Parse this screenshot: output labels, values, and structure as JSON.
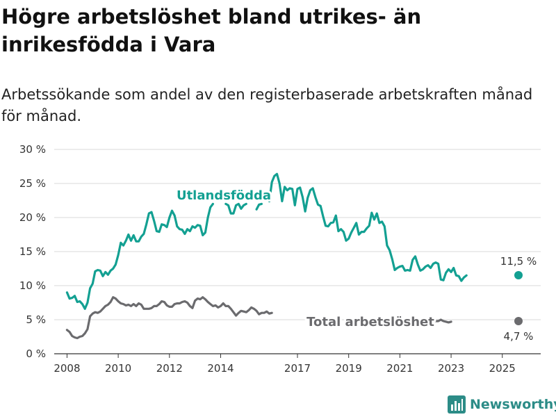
{
  "title": "Högre arbetslöshet bland utrikes- än inrikesfödda i Vara",
  "subtitle": "Arbetssökande som andel av den registerbaserade arbetskraften månad för månad.",
  "brand": {
    "name": "Newsworthy",
    "color": "#2c8c87",
    "icon": "bar-chart-logo-icon"
  },
  "chart_data": {
    "type": "line",
    "x_unit": "year",
    "xlim": [
      2007.5,
      2026.5
    ],
    "ylim": [
      0,
      30
    ],
    "y_ticks": [
      0,
      5,
      10,
      15,
      20,
      25,
      30
    ],
    "y_tick_labels": [
      "0 %",
      "5 %",
      "10 %",
      "15 %",
      "20 %",
      "25 %",
      "30 %"
    ],
    "x_ticks": [
      2008,
      2010,
      2012,
      2014,
      2017,
      2019,
      2021,
      2023,
      2025
    ],
    "x_tick_labels": [
      "2008",
      "2010",
      "2012",
      "2014",
      "2017",
      "2019",
      "2021",
      "2023",
      "2025"
    ],
    "grid": "horizontal",
    "series": [
      {
        "name": "Utlandsfödda",
        "color": "#13a092",
        "end_label": "11,5 %",
        "points": [
          [
            2008.0,
            9.0
          ],
          [
            2008.1,
            8.1
          ],
          [
            2008.2,
            8.2
          ],
          [
            2008.3,
            8.5
          ],
          [
            2008.4,
            7.6
          ],
          [
            2008.5,
            7.7
          ],
          [
            2008.6,
            7.3
          ],
          [
            2008.7,
            6.6
          ],
          [
            2008.8,
            7.5
          ],
          [
            2008.9,
            9.6
          ],
          [
            2009.0,
            10.3
          ],
          [
            2009.1,
            12.1
          ],
          [
            2009.2,
            12.3
          ],
          [
            2009.3,
            12.2
          ],
          [
            2009.4,
            11.4
          ],
          [
            2009.5,
            12.0
          ],
          [
            2009.6,
            11.6
          ],
          [
            2009.7,
            12.2
          ],
          [
            2009.8,
            12.5
          ],
          [
            2009.9,
            13.1
          ],
          [
            2010.0,
            14.5
          ],
          [
            2010.1,
            16.3
          ],
          [
            2010.2,
            15.9
          ],
          [
            2010.3,
            16.6
          ],
          [
            2010.4,
            17.5
          ],
          [
            2010.5,
            16.6
          ],
          [
            2010.6,
            17.4
          ],
          [
            2010.7,
            16.5
          ],
          [
            2010.8,
            16.5
          ],
          [
            2010.9,
            17.2
          ],
          [
            2011.0,
            17.6
          ],
          [
            2011.1,
            19.0
          ],
          [
            2011.2,
            20.6
          ],
          [
            2011.3,
            20.8
          ],
          [
            2011.4,
            19.5
          ],
          [
            2011.5,
            18.0
          ],
          [
            2011.6,
            17.9
          ],
          [
            2011.7,
            19.0
          ],
          [
            2011.8,
            18.9
          ],
          [
            2011.9,
            18.6
          ],
          [
            2012.0,
            20.0
          ],
          [
            2012.1,
            21.0
          ],
          [
            2012.2,
            20.3
          ],
          [
            2012.3,
            18.7
          ],
          [
            2012.4,
            18.3
          ],
          [
            2012.5,
            18.2
          ],
          [
            2012.6,
            17.6
          ],
          [
            2012.7,
            18.3
          ],
          [
            2012.8,
            18.0
          ],
          [
            2012.9,
            18.7
          ],
          [
            2013.0,
            18.5
          ],
          [
            2013.1,
            18.9
          ],
          [
            2013.2,
            18.8
          ],
          [
            2013.3,
            17.4
          ],
          [
            2013.4,
            17.8
          ],
          [
            2013.5,
            20.0
          ],
          [
            2013.6,
            21.5
          ],
          [
            2013.7,
            22.0
          ],
          [
            null,
            null
          ],
          [
            2014.2,
            22.0
          ],
          [
            2014.3,
            21.8
          ],
          [
            2014.4,
            20.6
          ],
          [
            2014.5,
            20.6
          ],
          [
            2014.6,
            21.8
          ],
          [
            2014.7,
            22.0
          ],
          [
            2014.8,
            21.3
          ],
          [
            2014.9,
            21.8
          ],
          [
            2015.0,
            22.0
          ],
          [
            null,
            null
          ],
          [
            2015.4,
            21.2
          ],
          [
            2015.5,
            21.9
          ],
          [
            2015.6,
            22.0
          ],
          [
            null,
            null
          ],
          [
            2015.9,
            22.4
          ],
          [
            2016.0,
            25.2
          ],
          [
            2016.1,
            26.1
          ],
          [
            2016.2,
            26.4
          ],
          [
            2016.3,
            25.0
          ],
          [
            2016.4,
            22.4
          ],
          [
            2016.5,
            24.5
          ],
          [
            2016.6,
            24.0
          ],
          [
            2016.7,
            24.3
          ],
          [
            2016.8,
            24.2
          ],
          [
            2016.9,
            21.8
          ],
          [
            2017.0,
            24.2
          ],
          [
            2017.1,
            24.4
          ],
          [
            2017.2,
            23.0
          ],
          [
            2017.3,
            20.9
          ],
          [
            2017.4,
            22.9
          ],
          [
            2017.5,
            24.0
          ],
          [
            2017.6,
            24.3
          ],
          [
            2017.7,
            23.0
          ],
          [
            2017.8,
            21.9
          ],
          [
            2017.9,
            21.7
          ],
          [
            2018.0,
            20.2
          ],
          [
            2018.1,
            18.8
          ],
          [
            2018.2,
            18.7
          ],
          [
            2018.3,
            19.2
          ],
          [
            2018.4,
            19.3
          ],
          [
            2018.5,
            20.3
          ],
          [
            2018.6,
            18.0
          ],
          [
            2018.7,
            18.3
          ],
          [
            2018.8,
            17.9
          ],
          [
            2018.9,
            16.6
          ],
          [
            2019.0,
            16.9
          ],
          [
            2019.1,
            17.8
          ],
          [
            2019.2,
            18.5
          ],
          [
            2019.3,
            19.2
          ],
          [
            2019.4,
            17.5
          ],
          [
            2019.5,
            17.9
          ],
          [
            2019.6,
            17.9
          ],
          [
            2019.7,
            18.4
          ],
          [
            2019.8,
            18.8
          ],
          [
            2019.9,
            20.7
          ],
          [
            2020.0,
            19.7
          ],
          [
            2020.1,
            20.6
          ],
          [
            2020.2,
            19.2
          ],
          [
            2020.3,
            19.4
          ],
          [
            2020.4,
            18.7
          ],
          [
            2020.5,
            15.9
          ],
          [
            2020.6,
            15.2
          ],
          [
            2020.7,
            13.9
          ],
          [
            2020.8,
            12.3
          ],
          [
            2020.9,
            12.6
          ],
          [
            2021.0,
            12.8
          ],
          [
            2021.1,
            12.9
          ],
          [
            2021.2,
            12.2
          ],
          [
            2021.3,
            12.3
          ],
          [
            2021.4,
            12.2
          ],
          [
            2021.5,
            13.8
          ],
          [
            2021.6,
            14.3
          ],
          [
            2021.7,
            13.1
          ],
          [
            2021.8,
            12.2
          ],
          [
            2021.9,
            12.4
          ],
          [
            2022.0,
            12.8
          ],
          [
            2022.1,
            13.0
          ],
          [
            2022.2,
            12.6
          ],
          [
            2022.3,
            13.2
          ],
          [
            2022.4,
            13.4
          ],
          [
            2022.5,
            13.2
          ],
          [
            2022.6,
            10.9
          ],
          [
            2022.7,
            10.8
          ],
          [
            2022.8,
            11.9
          ],
          [
            2022.9,
            12.4
          ],
          [
            2023.0,
            12.0
          ],
          [
            2023.1,
            12.6
          ],
          [
            2023.2,
            11.5
          ],
          [
            2023.3,
            11.4
          ],
          [
            2023.4,
            10.7
          ],
          [
            2023.5,
            11.2
          ],
          [
            2023.6,
            11.5
          ]
        ]
      },
      {
        "name": "Total arbetslöshet",
        "color": "#6b6b6e",
        "end_label": "4,7 %",
        "points": [
          [
            2008.0,
            3.5
          ],
          [
            2008.1,
            3.2
          ],
          [
            2008.2,
            2.6
          ],
          [
            2008.3,
            2.4
          ],
          [
            2008.4,
            2.3
          ],
          [
            2008.5,
            2.5
          ],
          [
            2008.6,
            2.6
          ],
          [
            2008.7,
            3.0
          ],
          [
            2008.8,
            3.6
          ],
          [
            2008.9,
            5.5
          ],
          [
            2009.0,
            5.9
          ],
          [
            2009.1,
            6.1
          ],
          [
            2009.2,
            6.0
          ],
          [
            2009.3,
            6.2
          ],
          [
            2009.4,
            6.6
          ],
          [
            2009.5,
            7.0
          ],
          [
            2009.6,
            7.2
          ],
          [
            2009.7,
            7.6
          ],
          [
            2009.8,
            8.3
          ],
          [
            2009.9,
            8.1
          ],
          [
            2010.0,
            7.7
          ],
          [
            2010.1,
            7.4
          ],
          [
            2010.2,
            7.3
          ],
          [
            2010.3,
            7.1
          ],
          [
            2010.4,
            7.2
          ],
          [
            2010.5,
            7.0
          ],
          [
            2010.6,
            7.3
          ],
          [
            2010.7,
            7.0
          ],
          [
            2010.8,
            7.4
          ],
          [
            2010.9,
            7.2
          ],
          [
            2011.0,
            6.6
          ],
          [
            2011.1,
            6.6
          ],
          [
            2011.2,
            6.6
          ],
          [
            2011.3,
            6.7
          ],
          [
            2011.4,
            7.0
          ],
          [
            2011.5,
            7.0
          ],
          [
            2011.6,
            7.3
          ],
          [
            2011.7,
            7.7
          ],
          [
            2011.8,
            7.6
          ],
          [
            2011.9,
            7.1
          ],
          [
            2012.0,
            6.9
          ],
          [
            2012.1,
            6.9
          ],
          [
            2012.2,
            7.3
          ],
          [
            2012.3,
            7.4
          ],
          [
            2012.4,
            7.4
          ],
          [
            2012.5,
            7.6
          ],
          [
            2012.6,
            7.7
          ],
          [
            2012.7,
            7.5
          ],
          [
            2012.8,
            7.0
          ],
          [
            2012.9,
            6.7
          ],
          [
            2013.0,
            7.8
          ],
          [
            2013.1,
            8.1
          ],
          [
            2013.2,
            8.0
          ],
          [
            2013.3,
            8.3
          ],
          [
            2013.4,
            8.0
          ],
          [
            2013.5,
            7.6
          ],
          [
            2013.6,
            7.3
          ],
          [
            2013.7,
            7.0
          ],
          [
            2013.8,
            7.1
          ],
          [
            2013.9,
            6.8
          ],
          [
            2014.0,
            7.0
          ],
          [
            2014.1,
            7.4
          ],
          [
            2014.2,
            7.0
          ],
          [
            2014.3,
            7.0
          ],
          [
            2014.4,
            6.6
          ],
          [
            2014.5,
            6.1
          ],
          [
            2014.6,
            5.6
          ],
          [
            2014.7,
            6.0
          ],
          [
            2014.8,
            6.3
          ],
          [
            2014.9,
            6.2
          ],
          [
            2015.0,
            6.1
          ],
          [
            2015.1,
            6.4
          ],
          [
            2015.2,
            6.8
          ],
          [
            2015.3,
            6.6
          ],
          [
            2015.4,
            6.3
          ],
          [
            2015.5,
            5.8
          ],
          [
            2015.6,
            6.0
          ],
          [
            2015.7,
            6.0
          ],
          [
            2015.8,
            6.2
          ],
          [
            2015.9,
            5.9
          ],
          [
            2016.0,
            6.0
          ],
          [
            null,
            null
          ],
          [
            2020.6,
            4.8
          ],
          [
            2020.7,
            4.6
          ],
          [
            2020.8,
            4.7
          ],
          [
            2020.9,
            4.7
          ],
          [
            2021.0,
            4.5
          ],
          [
            2021.1,
            4.7
          ],
          [
            2021.2,
            4.4
          ],
          [
            2021.3,
            4.0
          ],
          [
            2021.4,
            4.1
          ],
          [
            2021.5,
            4.5
          ],
          [
            2021.6,
            4.6
          ],
          [
            2021.7,
            4.7
          ],
          [
            2021.8,
            4.9
          ],
          [
            2021.9,
            4.8
          ],
          [
            2022.0,
            4.6
          ],
          [
            2022.1,
            4.2
          ],
          [
            2022.2,
            4.3
          ],
          [
            2022.3,
            4.7
          ],
          [
            2022.4,
            4.8
          ],
          [
            2022.5,
            4.8
          ],
          [
            2022.6,
            5.0
          ],
          [
            2022.7,
            4.8
          ],
          [
            2022.8,
            4.7
          ],
          [
            2022.9,
            4.6
          ],
          [
            2023.0,
            4.7
          ]
        ]
      }
    ],
    "annotations": [
      {
        "text": "Utlandsfödda",
        "series": "Utlandsfödda"
      },
      {
        "text": "Total arbetslöshet",
        "series": "Total arbetslöshet"
      }
    ]
  }
}
